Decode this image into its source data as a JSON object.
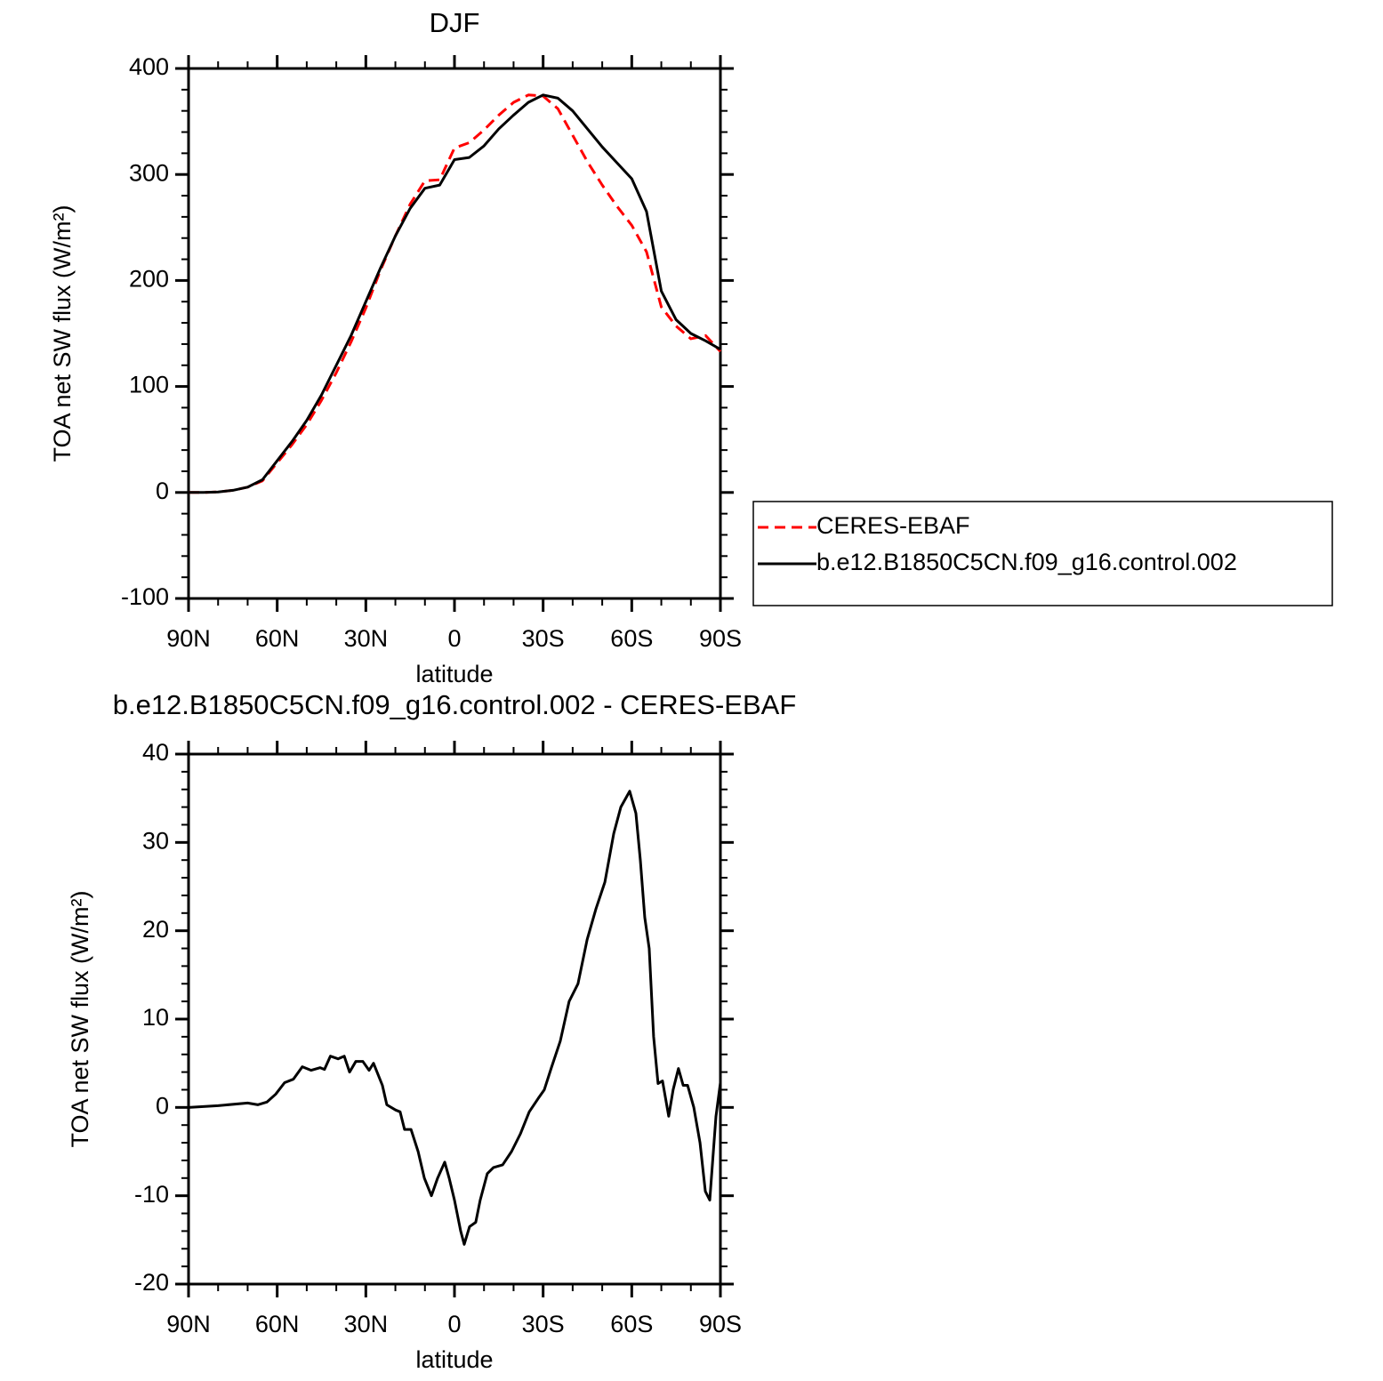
{
  "chart_data": [
    {
      "type": "line",
      "title": "DJF",
      "y_label": "TOA net SW flux (W/m²)",
      "x_label": "latitude",
      "xlim": [
        90,
        -90
      ],
      "xticks": [
        {
          "value": 90,
          "label": "90N"
        },
        {
          "value": 60,
          "label": "60N"
        },
        {
          "value": 30,
          "label": "30N"
        },
        0,
        {
          "value": -30,
          "label": "30S"
        },
        {
          "value": -60,
          "label": "60S"
        },
        {
          "value": -90,
          "label": "90S"
        }
      ],
      "ylim": [
        -100,
        400
      ],
      "yticks": [
        -100,
        0,
        100,
        200,
        300,
        400
      ],
      "legend": "right",
      "x": [
        90,
        85,
        80,
        75,
        70,
        65,
        60,
        55,
        50,
        45,
        40,
        35,
        30,
        25,
        20,
        15,
        10,
        5,
        0,
        -5,
        -10,
        -15,
        -20,
        -25,
        -30,
        -35,
        -40,
        -45,
        -50,
        -55,
        -60,
        -65,
        -70,
        -75,
        -80,
        -85,
        -90
      ],
      "series": [
        {
          "name": "CERES-EBAF",
          "color": "#ff0000",
          "dashed": true,
          "values": [
            0,
            0,
            0.5,
            2,
            5,
            11,
            28,
            45,
            64,
            87,
            113,
            142,
            174,
            210,
            242,
            272,
            294,
            295,
            325,
            330,
            342,
            356,
            368,
            375,
            374,
            362,
            337,
            312,
            290,
            270,
            252,
            227,
            175,
            157,
            145,
            148,
            133
          ]
        },
        {
          "name": "b.e12.B1850C5CN.f09_g16.control.002",
          "color": "#000000",
          "dashed": false,
          "values": [
            0,
            0,
            0.5,
            2,
            5,
            12,
            30,
            48,
            68,
            92,
            120,
            148,
            180,
            212,
            242,
            268,
            287,
            290,
            314,
            316,
            327,
            343,
            356,
            368,
            375,
            372,
            360,
            343,
            326,
            311,
            296,
            265,
            190,
            163,
            150,
            143,
            135
          ]
        }
      ]
    },
    {
      "type": "line",
      "title": "b.e12.B1850C5CN.f09_g16.control.002 - CERES-EBAF",
      "y_label": "TOA net SW flux (W/m²)",
      "x_label": "latitude",
      "xlim": [
        90,
        -90
      ],
      "xticks": [
        {
          "value": 90,
          "label": "90N"
        },
        {
          "value": 60,
          "label": "60N"
        },
        {
          "value": 30,
          "label": "30N"
        },
        0,
        {
          "value": -30,
          "label": "30S"
        },
        {
          "value": -60,
          "label": "60S"
        },
        {
          "value": -90,
          "label": "90S"
        }
      ],
      "ylim": [
        -20,
        40
      ],
      "yticks": [
        -20,
        -10,
        0,
        10,
        20,
        30,
        40
      ],
      "color": "#000000",
      "x": [
        90,
        80,
        70,
        66.5,
        63.5,
        60.5,
        57.5,
        54.5,
        51.5,
        48.5,
        45.5,
        44,
        42,
        39.4,
        37.3,
        35.5,
        33.4,
        31,
        28.9,
        27.4,
        24.4,
        22.9,
        19.9,
        18.4,
        16.9,
        14.7,
        12.3,
        10.2,
        7.8,
        5.7,
        3.3,
        1.8,
        0,
        -2.1,
        -3.3,
        -5.1,
        -7.2,
        -8.7,
        -11.1,
        -13.2,
        -16.3,
        -19.3,
        -22.3,
        -25.3,
        -28.3,
        -30.4,
        -32.8,
        -35.8,
        -38.8,
        -41.8,
        -44.9,
        -47.9,
        -50.9,
        -53.9,
        -56.3,
        -59.3,
        -61.4,
        -62.9,
        -64.4,
        -65.9,
        -67.4,
        -68.9,
        -70.4,
        -72.5,
        -74,
        -75.8,
        -77.4,
        -78.9,
        -81,
        -83.1,
        -84.9,
        -86.4,
        -88.5,
        -90
      ],
      "values": [
        0,
        0.2,
        0.5,
        0.3,
        0.6,
        1.5,
        2.8,
        3.2,
        4.6,
        4.2,
        4.5,
        4.3,
        5.8,
        5.5,
        5.8,
        4,
        5.2,
        5.2,
        4.2,
        5,
        2.5,
        0.3,
        -0.3,
        -0.5,
        -2.5,
        -2.5,
        -5,
        -8,
        -10,
        -8,
        -6.2,
        -8,
        -10.5,
        -14,
        -15.5,
        -13.5,
        -13,
        -10.5,
        -7.5,
        -6.8,
        -6.5,
        -5,
        -3,
        -0.5,
        1,
        2,
        4.5,
        7.5,
        12,
        14,
        19,
        22.5,
        25.5,
        31,
        34,
        35.8,
        33.3,
        28,
        21.5,
        18,
        8,
        2.7,
        3,
        -1,
        2,
        4.4,
        2.5,
        2.5,
        0,
        -4,
        -9.5,
        -10.5,
        -1,
        2.8
      ]
    }
  ]
}
